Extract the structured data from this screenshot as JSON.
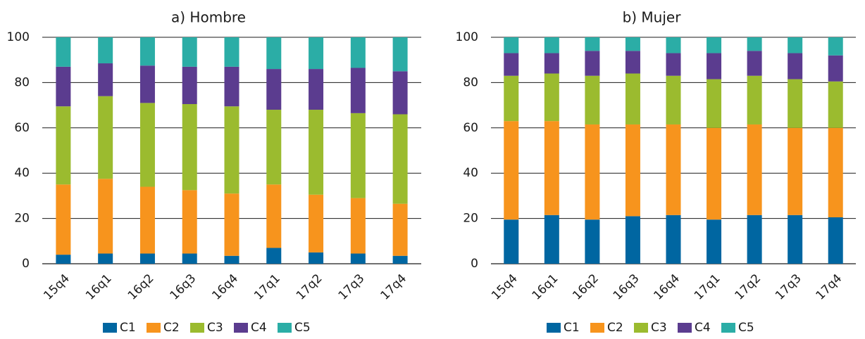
{
  "chart_data": [
    {
      "type": "bar",
      "stacked": true,
      "title": "a) Hombre",
      "xlabel": "",
      "ylabel": "",
      "ylim": [
        0,
        100
      ],
      "yticks": [
        0,
        20,
        40,
        60,
        80,
        100
      ],
      "grid": "horizontal",
      "legend": "bottom",
      "categories": [
        "15q4",
        "16q1",
        "16q2",
        "16q3",
        "16q4",
        "17q1",
        "17q2",
        "17q3",
        "17q4"
      ],
      "series": [
        {
          "name": "C1",
          "color": "#0066A1",
          "values": [
            4,
            4.5,
            4.5,
            4.5,
            3.5,
            7,
            5,
            4.5,
            3.5
          ]
        },
        {
          "name": "C2",
          "color": "#F7941D",
          "values": [
            31,
            33,
            29.5,
            28,
            27.5,
            28,
            25.5,
            24.5,
            23
          ]
        },
        {
          "name": "C3",
          "color": "#9BBB2F",
          "values": [
            34.5,
            36.5,
            37,
            38,
            38.5,
            33,
            37.5,
            37.5,
            39.5
          ]
        },
        {
          "name": "C4",
          "color": "#5B3C8F",
          "values": [
            17.5,
            14.5,
            16.5,
            16.5,
            17.5,
            18,
            18,
            20,
            19
          ]
        },
        {
          "name": "C5",
          "color": "#2BADA6",
          "values": [
            13,
            11.5,
            12.5,
            13,
            13,
            14,
            14,
            13.5,
            15
          ]
        }
      ]
    },
    {
      "type": "bar",
      "stacked": true,
      "title": "b) Mujer",
      "xlabel": "",
      "ylabel": "",
      "ylim": [
        0,
        100
      ],
      "yticks": [
        0,
        20,
        40,
        60,
        80,
        100
      ],
      "grid": "horizontal",
      "legend": "bottom",
      "categories": [
        "15q4",
        "16q1",
        "16q2",
        "16q3",
        "16q4",
        "17q1",
        "17q2",
        "17q3",
        "17q4"
      ],
      "series": [
        {
          "name": "C1",
          "color": "#0066A1",
          "values": [
            19.5,
            21.5,
            19.5,
            21,
            21.5,
            19.5,
            21.5,
            21.5,
            20.5
          ]
        },
        {
          "name": "C2",
          "color": "#F7941D",
          "values": [
            43.5,
            41.5,
            42,
            40.5,
            40,
            40.5,
            40,
            38.5,
            39.5
          ]
        },
        {
          "name": "C3",
          "color": "#9BBB2F",
          "values": [
            20,
            21,
            21.5,
            22.5,
            21.5,
            21.5,
            21.5,
            21.5,
            20.5
          ]
        },
        {
          "name": "C4",
          "color": "#5B3C8F",
          "values": [
            10,
            9,
            11,
            10,
            10,
            11.5,
            11,
            11.5,
            11.5
          ]
        },
        {
          "name": "C5",
          "color": "#2BADA6",
          "values": [
            7,
            7,
            6,
            6,
            7,
            7,
            6,
            7,
            8
          ]
        }
      ]
    }
  ]
}
